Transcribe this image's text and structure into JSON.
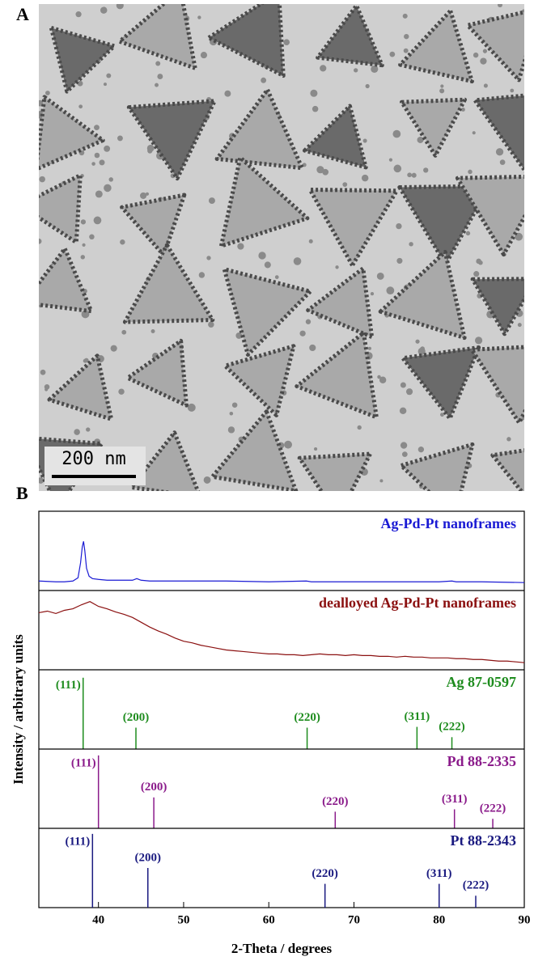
{
  "panel_a": {
    "label": "A",
    "scale_bar": "200 nm"
  },
  "panel_b": {
    "label": "B",
    "x_label": "2-Theta / degrees",
    "y_label": "Intensity / arbitrary units",
    "xlim": [
      33,
      90
    ],
    "xticks": [
      40,
      50,
      60,
      70,
      80,
      90
    ]
  },
  "chart_data": [
    {
      "type": "line",
      "name": "Ag-Pd-Pt nanoframes",
      "color": "#1a1ad4",
      "ylim": [
        0,
        100
      ],
      "x": [
        33,
        35,
        36,
        37,
        37.6,
        37.9,
        38.1,
        38.25,
        38.4,
        38.6,
        38.9,
        39.3,
        40,
        41,
        42,
        43,
        44,
        44.5,
        45,
        46,
        50,
        55,
        60,
        64.4,
        65,
        70,
        75,
        77.5,
        80,
        81.5,
        82,
        85,
        90
      ],
      "values": [
        12,
        11,
        11,
        12,
        16,
        35,
        55,
        62,
        50,
        28,
        18,
        15,
        14,
        13,
        13,
        13,
        13,
        15,
        13,
        12,
        12,
        12,
        11,
        12,
        11,
        11,
        11,
        11,
        11,
        12,
        11,
        11,
        10
      ]
    },
    {
      "type": "line",
      "name": "dealloyed Ag-Pd-Pt nanoframes",
      "color": "#8b1010",
      "ylim": [
        0,
        100
      ],
      "x": [
        33,
        34,
        35,
        36,
        37,
        38,
        39,
        40,
        41,
        42,
        43,
        44,
        45,
        46,
        47,
        48,
        49,
        50,
        51,
        52,
        53,
        54,
        55,
        56,
        57,
        58,
        59,
        60,
        61,
        62,
        63,
        64,
        65,
        66,
        67,
        68,
        69,
        70,
        71,
        72,
        73,
        74,
        75,
        76,
        77,
        78,
        79,
        80,
        81,
        82,
        83,
        84,
        85,
        86,
        87,
        88,
        89,
        90
      ],
      "values": [
        72,
        74,
        71,
        75,
        77,
        82,
        86,
        80,
        77,
        73,
        70,
        66,
        60,
        54,
        49,
        45,
        40,
        36,
        34,
        31,
        29,
        27,
        25,
        24,
        23,
        22,
        21,
        20,
        20,
        19,
        19,
        18,
        19,
        20,
        19,
        19,
        18,
        19,
        18,
        18,
        17,
        17,
        16,
        17,
        16,
        16,
        15,
        15,
        15,
        14,
        14,
        13,
        13,
        12,
        11,
        11,
        10,
        9
      ]
    },
    {
      "type": "stick",
      "name": "Ag 87-0597",
      "color": "#1e8c1e",
      "ylim": [
        0,
        100
      ],
      "x": [
        38.2,
        44.4,
        64.5,
        77.4,
        81.5
      ],
      "values": [
        90,
        27,
        27,
        28,
        15
      ],
      "peak_labels": [
        "(111)",
        "(200)",
        "(220)",
        "(311)",
        "(222)"
      ]
    },
    {
      "type": "stick",
      "name": "Pd 88-2335",
      "color": "#8a1a8a",
      "ylim": [
        0,
        100
      ],
      "x": [
        40.0,
        46.5,
        67.8,
        81.8,
        86.3
      ],
      "values": [
        92,
        39,
        21,
        24,
        12
      ],
      "peak_labels": [
        "(111)",
        "(200)",
        "(220)",
        "(311)",
        "(222)"
      ]
    },
    {
      "type": "stick",
      "name": "Pt 88-2343",
      "color": "#1a1a80",
      "ylim": [
        0,
        100
      ],
      "x": [
        39.3,
        45.8,
        66.6,
        80.0,
        84.3
      ],
      "values": [
        93,
        50,
        30,
        30,
        15
      ],
      "peak_labels": [
        "(111)",
        "(200)",
        "(220)",
        "(311)",
        "(222)"
      ]
    }
  ]
}
